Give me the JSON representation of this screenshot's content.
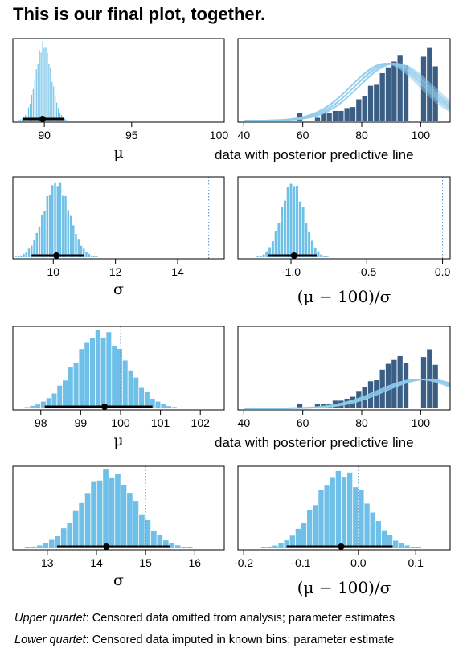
{
  "title": "This is our final plot, together.",
  "colors": {
    "hist": "#6fc0e8",
    "data_bars": "#3b5f84",
    "pp_line": "#8ecbec",
    "ref_line": "#4c8fd6",
    "interval": "#000000"
  },
  "captions": [
    {
      "lead": "Upper quartet",
      "text": ": Censored data omitted from analysis; parameter estimates"
    },
    {
      "lead": "Lower quartet",
      "text": ": Censored data imputed in known bins; parameter estimate"
    }
  ],
  "chart_data": [
    {
      "id": "p1",
      "type": "histogram",
      "xlabel": "μ",
      "xlim": [
        88.2,
        100.3
      ],
      "ticks": [
        90,
        95,
        100
      ],
      "tick_labels": [
        "90",
        "95",
        "100"
      ],
      "mode": 89.9,
      "hdi": [
        88.8,
        91.1
      ],
      "ref": 100,
      "center": 89.95,
      "sd": 0.45,
      "bins": 40
    },
    {
      "id": "p2",
      "type": "bar",
      "xlabel": "data with posterior predictive line",
      "xlim": [
        38,
        110
      ],
      "ticks": [
        40,
        60,
        80,
        100
      ],
      "tick_labels": [
        "40",
        "60",
        "80",
        "100"
      ],
      "bin_edges": [
        58,
        60,
        62,
        64,
        66,
        68,
        70,
        72,
        74,
        76,
        78,
        80,
        82,
        84,
        86,
        88,
        90,
        92,
        94,
        96,
        98,
        100,
        102,
        104,
        106
      ],
      "values": [
        0.8,
        0,
        0,
        0.3,
        0.8,
        0.8,
        1.0,
        1.0,
        1.3,
        1.4,
        2.2,
        2.5,
        3.6,
        3.7,
        4.9,
        5.5,
        6.1,
        6.7,
        5.7,
        0,
        0,
        6.6,
        7.5,
        5.6
      ],
      "pp_mean": 90,
      "pp_sd": 12,
      "pp_peak": 5.9
    },
    {
      "id": "p3",
      "type": "histogram",
      "xlabel": "σ",
      "xlim": [
        8.7,
        15.5
      ],
      "ticks": [
        10,
        12,
        14
      ],
      "tick_labels": [
        "10",
        "12",
        "14"
      ],
      "mode": 10.1,
      "hdi": [
        9.3,
        11.0
      ],
      "ref": 15,
      "center": 10.1,
      "sd": 0.42,
      "bins": 40
    },
    {
      "id": "p4",
      "type": "histogram",
      "xlabel": "(μ − 100)/σ",
      "xlim": [
        -1.35,
        0.05
      ],
      "ticks": [
        -1.0,
        -0.5,
        0.0
      ],
      "tick_labels": [
        "-1.0",
        "-0.5",
        "0.0"
      ],
      "mode": -0.98,
      "hdi": [
        -1.15,
        -0.83
      ],
      "ref": 0,
      "center": -0.99,
      "sd": 0.075,
      "bins": 30
    },
    {
      "id": "p5",
      "type": "histogram",
      "xlabel": "μ",
      "xlim": [
        97.3,
        102.6
      ],
      "ticks": [
        98,
        99,
        100,
        101,
        102
      ],
      "tick_labels": [
        "98",
        "99",
        "100",
        "101",
        "102"
      ],
      "mode": 99.6,
      "hdi": [
        98.1,
        100.8
      ],
      "ref": 100,
      "center": 99.5,
      "sd": 0.65,
      "bins": 38
    },
    {
      "id": "p6",
      "type": "bar",
      "xlabel": "data with posterior predictive line",
      "xlim": [
        38,
        110
      ],
      "ticks": [
        40,
        60,
        80,
        100
      ],
      "tick_labels": [
        "40",
        "60",
        "80",
        "100"
      ],
      "bin_edges": [
        58,
        60,
        62,
        64,
        66,
        68,
        70,
        72,
        74,
        76,
        78,
        80,
        82,
        84,
        86,
        88,
        90,
        92,
        94,
        96,
        98,
        100,
        102,
        104,
        106
      ],
      "values": [
        0.5,
        0,
        0,
        0.5,
        0.5,
        0.5,
        0.8,
        0.8,
        1.0,
        1.2,
        1.8,
        2.2,
        2.8,
        2.9,
        4.0,
        4.6,
        5.0,
        5.4,
        4.7,
        0,
        0,
        5.3,
        6.1,
        4.5
      ],
      "pp_mean": 101,
      "pp_sd": 14,
      "pp_peak": 3.0
    },
    {
      "id": "p7",
      "type": "histogram",
      "xlabel": "σ",
      "xlim": [
        12.3,
        16.6
      ],
      "ticks": [
        13,
        14,
        15,
        16
      ],
      "tick_labels": [
        "13",
        "14",
        "15",
        "16"
      ],
      "mode": 14.2,
      "hdi": [
        13.2,
        15.5
      ],
      "ref": 15,
      "center": 14.25,
      "sd": 0.55,
      "bins": 36
    },
    {
      "id": "p8",
      "type": "histogram",
      "xlabel": "(μ − 100)/σ",
      "xlim": [
        -0.21,
        0.16
      ],
      "ticks": [
        -0.2,
        -0.1,
        0.0,
        0.1
      ],
      "tick_labels": [
        "-0.2",
        "-0.1",
        "0.0",
        "0.1"
      ],
      "mode": -0.03,
      "hdi": [
        -0.125,
        0.06
      ],
      "ref": 0,
      "center": -0.03,
      "sd": 0.045,
      "bins": 36
    }
  ]
}
